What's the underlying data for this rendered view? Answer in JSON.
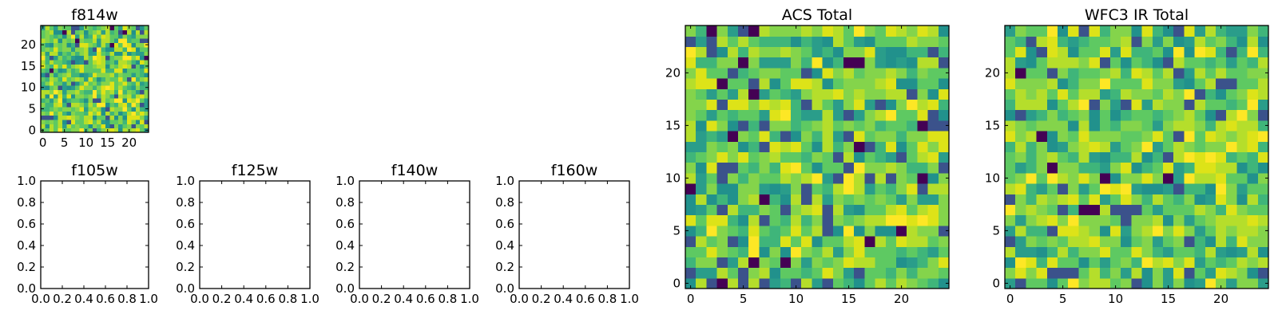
{
  "chart_data": [
    {
      "type": "heatmap",
      "title": "f814w",
      "xlim": [
        -0.5,
        24.5
      ],
      "ylim": [
        -0.5,
        24.5
      ],
      "xticks": [
        "0",
        "5",
        "10",
        "15",
        "20"
      ],
      "yticks": [
        "0",
        "5",
        "10",
        "15",
        "20"
      ],
      "grid_size": 25,
      "colormap": "viridis"
    },
    {
      "type": "heatmap",
      "title": "f105w",
      "xlim": [
        0.0,
        1.0
      ],
      "ylim": [
        0.0,
        1.0
      ],
      "xticks": [
        "0.0",
        "0.2",
        "0.4",
        "0.6",
        "0.8",
        "1.0"
      ],
      "yticks": [
        "0.0",
        "0.2",
        "0.4",
        "0.6",
        "0.8",
        "1.0"
      ]
    },
    {
      "type": "heatmap",
      "title": "f125w",
      "xlim": [
        0.0,
        1.0
      ],
      "ylim": [
        0.0,
        1.0
      ],
      "xticks": [
        "0.0",
        "0.2",
        "0.4",
        "0.6",
        "0.8",
        "1.0"
      ],
      "yticks": [
        "0.0",
        "0.2",
        "0.4",
        "0.6",
        "0.8",
        "1.0"
      ]
    },
    {
      "type": "heatmap",
      "title": "f140w",
      "xlim": [
        0.0,
        1.0
      ],
      "ylim": [
        0.0,
        1.0
      ],
      "xticks": [
        "0.0",
        "0.2",
        "0.4",
        "0.6",
        "0.8",
        "1.0"
      ],
      "yticks": [
        "0.0",
        "0.2",
        "0.4",
        "0.6",
        "0.8",
        "1.0"
      ]
    },
    {
      "type": "heatmap",
      "title": "f160w",
      "xlim": [
        0.0,
        1.0
      ],
      "ylim": [
        0.0,
        1.0
      ],
      "xticks": [
        "0.0",
        "0.2",
        "0.4",
        "0.6",
        "0.8",
        "1.0"
      ],
      "yticks": [
        "0.0",
        "0.2",
        "0.4",
        "0.6",
        "0.8",
        "1.0"
      ]
    },
    {
      "type": "heatmap",
      "title": "ACS Total",
      "xlim": [
        -0.5,
        24.5
      ],
      "ylim": [
        -0.5,
        24.5
      ],
      "xticks": [
        "0",
        "5",
        "10",
        "15",
        "20"
      ],
      "yticks": [
        "0",
        "5",
        "10",
        "15",
        "20"
      ],
      "grid_size": 25,
      "colormap": "viridis"
    },
    {
      "type": "heatmap",
      "title": "WFC3 IR Total",
      "xlim": [
        -0.5,
        24.5
      ],
      "ylim": [
        -0.5,
        24.5
      ],
      "xticks": [
        "0",
        "5",
        "10",
        "15",
        "20"
      ],
      "yticks": [
        "0",
        "5",
        "10",
        "15",
        "20"
      ],
      "grid_size": 25,
      "colormap": "viridis"
    }
  ]
}
